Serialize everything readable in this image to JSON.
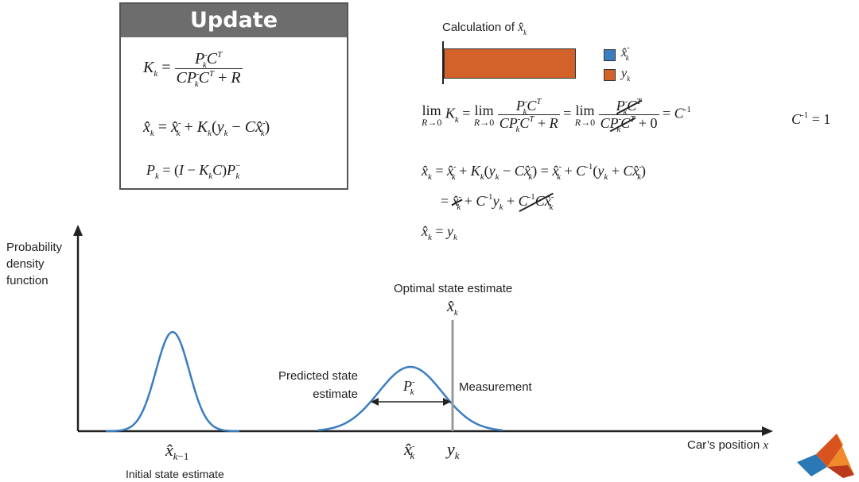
{
  "update_box": {
    "title": "Update"
  },
  "calc_chart": {
    "title_prefix": "Calculation of ",
    "bar_color": "#d2622a",
    "legend": [
      {
        "color": "#3a7dc1",
        "symbol": "x̂",
        "sup": "-",
        "sub": "k"
      },
      {
        "color": "#d2622a",
        "symbol": "y",
        "sub": "k"
      }
    ]
  },
  "side_note": {
    "text": "C",
    "sup": "-1",
    "rhs": "= 1"
  },
  "diagram": {
    "y_axis_label": [
      "Probability",
      "density",
      "function"
    ],
    "x_axis_label": "Car’s position",
    "x_axis_var": "x",
    "optimal_label": "Optimal state estimate",
    "predicted_label": [
      "Predicted state",
      "estimate"
    ],
    "measurement_label": "Measurement",
    "initial_label": "Initial state estimate",
    "curve_color": "#3a7dc1",
    "measurement_line_color": "#9a9a9a"
  }
}
